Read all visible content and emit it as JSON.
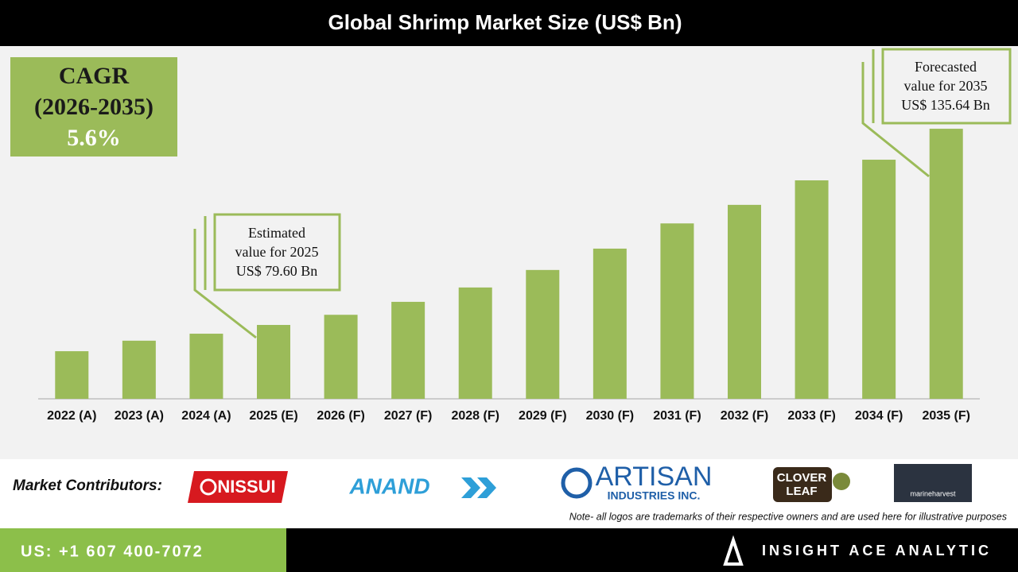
{
  "chart_data": {
    "type": "bar",
    "title": "Global Shrimp Market Size (US$ Bn)",
    "categories": [
      "2022 (A)",
      "2023 (A)",
      "2024 (A)",
      "2025 (E)",
      "2026 (F)",
      "2027 (F)",
      "2028 (F)",
      "2029 (F)",
      "2030 (F)",
      "2031 (F)",
      "2032 (F)",
      "2033 (F)",
      "2034 (F)",
      "2035 (F)"
    ],
    "values": [
      72.1,
      75.1,
      77.1,
      79.6,
      82.5,
      86.2,
      90.3,
      95.3,
      101.4,
      108.6,
      113.9,
      120.9,
      126.8,
      135.64
    ],
    "color": "#9bbb59",
    "ylim": [
      58.5,
      158.8
    ],
    "cagr": {
      "label": "CAGR",
      "period": "(2026-2035)",
      "value": "5.6%"
    },
    "annotations": [
      {
        "lines": [
          "Estimated",
          "value for 2025",
          "US$ 79.60 Bn"
        ]
      },
      {
        "lines": [
          "Forecasted",
          "value for 2035",
          "US$ 135.64 Bn"
        ]
      }
    ]
  },
  "footer": {
    "contributors_label": "Market Contributors:",
    "logos": [
      "NISSUI",
      "ANAND",
      "ARTISAN",
      "INDUSTRIES INC.",
      "CLOVER",
      "LEAF",
      "marineharvest"
    ],
    "note": "Note- all logos are trademarks of their respective owners and are used here for illustrative purposes",
    "phone": "US: +1 607 400-7072",
    "brand": "INSIGHT ACE ANALYTIC"
  }
}
